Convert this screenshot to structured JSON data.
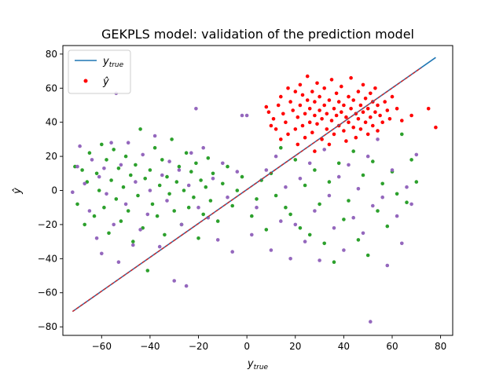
{
  "chart_data": {
    "type": "scatter",
    "title": "GEKPLS model: validation of the prediction model",
    "xlabel": "y_true",
    "ylabel": "ŷ",
    "xlim": [
      -76,
      85
    ],
    "ylim": [
      -85,
      85
    ],
    "xticks": [
      -60,
      -40,
      -20,
      0,
      20,
      40,
      60,
      80
    ],
    "yticks": [
      -80,
      -60,
      -40,
      -20,
      0,
      20,
      40,
      60,
      80
    ],
    "xtick_labels": [
      "−60",
      "−40",
      "−20",
      "0",
      "20",
      "40",
      "60",
      "80"
    ],
    "ytick_labels": [
      "−80",
      "−60",
      "−40",
      "−20",
      "0",
      "20",
      "40",
      "60",
      "80"
    ],
    "grid": false,
    "legend": {
      "placement": "top-left",
      "entries": [
        {
          "label": "y",
          "subscript": "true",
          "kind": "line",
          "color": "#1f77b4"
        },
        {
          "label": "ŷ",
          "subscript": "",
          "kind": "marker",
          "color": "#ff0000"
        }
      ]
    },
    "colors": {
      "ytrue_line": "#1f77b4",
      "prediction_line": "#d62728",
      "prediction": "#ff0000",
      "derivative_a": "#2ca02c",
      "derivative_b": "#9467bd"
    },
    "series": [
      {
        "name": "y_true",
        "kind": "line",
        "color": "#1f77b4",
        "points": [
          [
            -72,
            -71
          ],
          [
            78,
            78
          ]
        ]
      },
      {
        "kind": "line-dashed",
        "color": "#d62728",
        "points": [
          [
            -72,
            -71
          ],
          [
            72,
            72
          ]
        ]
      },
      {
        "name": "ŷ",
        "kind": "scatter",
        "color": "#ff0000",
        "points": [
          [
            8,
            49
          ],
          [
            9,
            46
          ],
          [
            10,
            38
          ],
          [
            11,
            42
          ],
          [
            12,
            36
          ],
          [
            13,
            50
          ],
          [
            14,
            30
          ],
          [
            14,
            55
          ],
          [
            15,
            45
          ],
          [
            16,
            40
          ],
          [
            17,
            33
          ],
          [
            17,
            60
          ],
          [
            18,
            52
          ],
          [
            19,
            47
          ],
          [
            20,
            36
          ],
          [
            20,
            58
          ],
          [
            21,
            43
          ],
          [
            21,
            27
          ],
          [
            22,
            50
          ],
          [
            22,
            62
          ],
          [
            23,
            38
          ],
          [
            23,
            56
          ],
          [
            24,
            45
          ],
          [
            24,
            31
          ],
          [
            25,
            53
          ],
          [
            25,
            67
          ],
          [
            26,
            40
          ],
          [
            26,
            48
          ],
          [
            27,
            58
          ],
          [
            27,
            34
          ],
          [
            28,
            44
          ],
          [
            28,
            52
          ],
          [
            28,
            23
          ],
          [
            29,
            63
          ],
          [
            29,
            39
          ],
          [
            30,
            47
          ],
          [
            30,
            55
          ],
          [
            31,
            30
          ],
          [
            31,
            42
          ],
          [
            32,
            50
          ],
          [
            32,
            60
          ],
          [
            33,
            36
          ],
          [
            33,
            45
          ],
          [
            34,
            53
          ],
          [
            34,
            27
          ],
          [
            35,
            41
          ],
          [
            35,
            65
          ],
          [
            36,
            48
          ],
          [
            36,
            33
          ],
          [
            37,
            57
          ],
          [
            37,
            44
          ],
          [
            38,
            38
          ],
          [
            38,
            52
          ],
          [
            39,
            46
          ],
          [
            39,
            61
          ],
          [
            40,
            35
          ],
          [
            40,
            50
          ],
          [
            41,
            43
          ],
          [
            41,
            29
          ],
          [
            42,
            55
          ],
          [
            42,
            40
          ],
          [
            43,
            48
          ],
          [
            43,
            66
          ],
          [
            44,
            37
          ],
          [
            44,
            53
          ],
          [
            45,
            45
          ],
          [
            45,
            31
          ],
          [
            46,
            58
          ],
          [
            46,
            42
          ],
          [
            47,
            50
          ],
          [
            47,
            36
          ],
          [
            48,
            62
          ],
          [
            48,
            46
          ],
          [
            49,
            40
          ],
          [
            49,
            54
          ],
          [
            50,
            33
          ],
          [
            50,
            48
          ],
          [
            51,
            57
          ],
          [
            51,
            43
          ],
          [
            52,
            38
          ],
          [
            52,
            52
          ],
          [
            53,
            46
          ],
          [
            53,
            60
          ],
          [
            54,
            35
          ],
          [
            54,
            50
          ],
          [
            55,
            44
          ],
          [
            56,
            40
          ],
          [
            57,
            52
          ],
          [
            58,
            47
          ],
          [
            59,
            42
          ],
          [
            60,
            55
          ],
          [
            62,
            48
          ],
          [
            64,
            41
          ],
          [
            68,
            44
          ],
          [
            75,
            48
          ],
          [
            78,
            37
          ]
        ]
      },
      {
        "kind": "scatter",
        "color": "#2ca02c",
        "points": [
          [
            -71,
            14
          ],
          [
            -70,
            -8
          ],
          [
            -68,
            12
          ],
          [
            -67,
            -20
          ],
          [
            -66,
            5
          ],
          [
            -65,
            22
          ],
          [
            -63,
            -15
          ],
          [
            -62,
            10
          ],
          [
            -61,
            0
          ],
          [
            -60,
            27
          ],
          [
            -59,
            -10
          ],
          [
            -58,
            18
          ],
          [
            -57,
            -25
          ],
          [
            -56,
            6
          ],
          [
            -55,
            24
          ],
          [
            -54,
            -5
          ],
          [
            -53,
            13
          ],
          [
            -52,
            -18
          ],
          [
            -51,
            2
          ],
          [
            -50,
            20
          ],
          [
            -49,
            -12
          ],
          [
            -48,
            9
          ],
          [
            -47,
            -30
          ],
          [
            -46,
            15
          ],
          [
            -45,
            -3
          ],
          [
            -44,
            36
          ],
          [
            -43,
            -22
          ],
          [
            -42,
            7
          ],
          [
            -41,
            -47
          ],
          [
            -40,
            12
          ],
          [
            -39,
            -8
          ],
          [
            -38,
            25
          ],
          [
            -37,
            -15
          ],
          [
            -36,
            3
          ],
          [
            -35,
            18
          ],
          [
            -34,
            -26
          ],
          [
            -33,
            8
          ],
          [
            -32,
            -2
          ],
          [
            -31,
            30
          ],
          [
            -30,
            -12
          ],
          [
            -29,
            5
          ],
          [
            -28,
            14
          ],
          [
            -27,
            -20
          ],
          [
            -26,
            0
          ],
          [
            -25,
            22
          ],
          [
            -24,
            -10
          ],
          [
            -23,
            11
          ],
          [
            -22,
            -4
          ],
          [
            -21,
            16
          ],
          [
            -20,
            -28
          ],
          [
            -19,
            6
          ],
          [
            -18,
            -14
          ],
          [
            -17,
            2
          ],
          [
            -16,
            19
          ],
          [
            -15,
            -6
          ],
          [
            -14,
            10
          ],
          [
            -12,
            -18
          ],
          [
            -10,
            4
          ],
          [
            -8,
            14
          ],
          [
            -6,
            -9
          ],
          [
            -4,
            0
          ],
          [
            -2,
            8
          ],
          [
            2,
            -15
          ],
          [
            4,
            -5
          ],
          [
            6,
            6
          ],
          [
            8,
            -23
          ],
          [
            10,
            10
          ],
          [
            12,
            -3
          ],
          [
            14,
            25
          ],
          [
            16,
            -10
          ],
          [
            18,
            -14
          ],
          [
            20,
            18
          ],
          [
            22,
            -22
          ],
          [
            24,
            3
          ],
          [
            26,
            -26
          ],
          [
            28,
            12
          ],
          [
            30,
            -8
          ],
          [
            32,
            -31
          ],
          [
            34,
            5
          ],
          [
            36,
            -42
          ],
          [
            38,
            16
          ],
          [
            40,
            -17
          ],
          [
            42,
            -6
          ],
          [
            44,
            23
          ],
          [
            46,
            -29
          ],
          [
            48,
            9
          ],
          [
            50,
            -38
          ],
          [
            52,
            17
          ],
          [
            54,
            -12
          ],
          [
            56,
            4
          ],
          [
            58,
            -21
          ],
          [
            60,
            11
          ],
          [
            62,
            -2
          ],
          [
            64,
            33
          ],
          [
            66,
            -7
          ],
          [
            68,
            18
          ],
          [
            70,
            5
          ]
        ]
      },
      {
        "kind": "scatter",
        "color": "#9467bd",
        "points": [
          [
            -72,
            -1
          ],
          [
            -70,
            14
          ],
          [
            -69,
            26
          ],
          [
            -67,
            4
          ],
          [
            -65,
            -12
          ],
          [
            -64,
            18
          ],
          [
            -62,
            -28
          ],
          [
            -61,
            8
          ],
          [
            -60,
            -37
          ],
          [
            -59,
            13
          ],
          [
            -58,
            -2
          ],
          [
            -56,
            28
          ],
          [
            -55,
            -20
          ],
          [
            -54,
            57
          ],
          [
            -53,
            -42
          ],
          [
            -52,
            15
          ],
          [
            -50,
            -8
          ],
          [
            -49,
            28
          ],
          [
            -47,
            -32
          ],
          [
            -46,
            5
          ],
          [
            -44,
            -23
          ],
          [
            -43,
            21
          ],
          [
            -41,
            -14
          ],
          [
            -40,
            0
          ],
          [
            -38,
            32
          ],
          [
            -36,
            -33
          ],
          [
            -35,
            9
          ],
          [
            -33,
            -6
          ],
          [
            -32,
            17
          ],
          [
            -30,
            -53
          ],
          [
            -28,
            12
          ],
          [
            -27,
            -20
          ],
          [
            -25,
            -56
          ],
          [
            -24,
            3
          ],
          [
            -23,
            22
          ],
          [
            -21,
            48
          ],
          [
            -20,
            -10
          ],
          [
            -18,
            25
          ],
          [
            -16,
            -16
          ],
          [
            -14,
            7
          ],
          [
            -12,
            -29
          ],
          [
            -10,
            16
          ],
          [
            -8,
            -4
          ],
          [
            -6,
            -36
          ],
          [
            -4,
            11
          ],
          [
            -2,
            44
          ],
          [
            0,
            44
          ],
          [
            2,
            -26
          ],
          [
            4,
            -10
          ],
          [
            8,
            12
          ],
          [
            10,
            -35
          ],
          [
            12,
            20
          ],
          [
            14,
            -18
          ],
          [
            16,
            2
          ],
          [
            18,
            -40
          ],
          [
            20,
            -20
          ],
          [
            22,
            7
          ],
          [
            24,
            -30
          ],
          [
            26,
            16
          ],
          [
            28,
            -12
          ],
          [
            30,
            -41
          ],
          [
            32,
            24
          ],
          [
            34,
            -3
          ],
          [
            36,
            -22
          ],
          [
            38,
            8
          ],
          [
            40,
            -35
          ],
          [
            42,
            15
          ],
          [
            44,
            -16
          ],
          [
            46,
            1
          ],
          [
            48,
            -25
          ],
          [
            50,
            20
          ],
          [
            51,
            -77
          ],
          [
            52,
            -9
          ],
          [
            54,
            30
          ],
          [
            56,
            -4
          ],
          [
            58,
            -44
          ],
          [
            60,
            12
          ],
          [
            62,
            -15
          ],
          [
            64,
            -31
          ],
          [
            66,
            2
          ],
          [
            68,
            -8
          ],
          [
            70,
            21
          ]
        ]
      }
    ]
  }
}
